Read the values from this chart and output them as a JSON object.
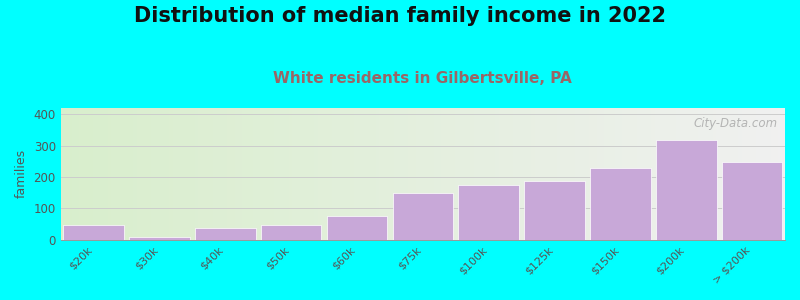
{
  "title": "Distribution of median family income in 2022",
  "subtitle": "White residents in Gilbertsville, PA",
  "ylabel": "families",
  "categories": [
    "$20k",
    "$30k",
    "$40k",
    "$50k",
    "$60k",
    "$75k",
    "$100k",
    "$125k",
    "$150k",
    "$200k",
    "> $200k"
  ],
  "values": [
    47,
    8,
    38,
    48,
    75,
    150,
    175,
    188,
    228,
    318,
    248
  ],
  "bar_color": "#c8a8d8",
  "bar_edgecolor": "#ffffff",
  "background_color": "#00ffff",
  "plot_bg_left": "#d8eecc",
  "plot_bg_right": "#f0f0f0",
  "title_fontsize": 15,
  "subtitle_fontsize": 11,
  "subtitle_color": "#996666",
  "ylabel_fontsize": 9,
  "yticks": [
    0,
    100,
    200,
    300,
    400
  ],
  "ylim": [
    0,
    420
  ],
  "watermark": "City-Data.com",
  "watermark_color": "#aaaaaa"
}
